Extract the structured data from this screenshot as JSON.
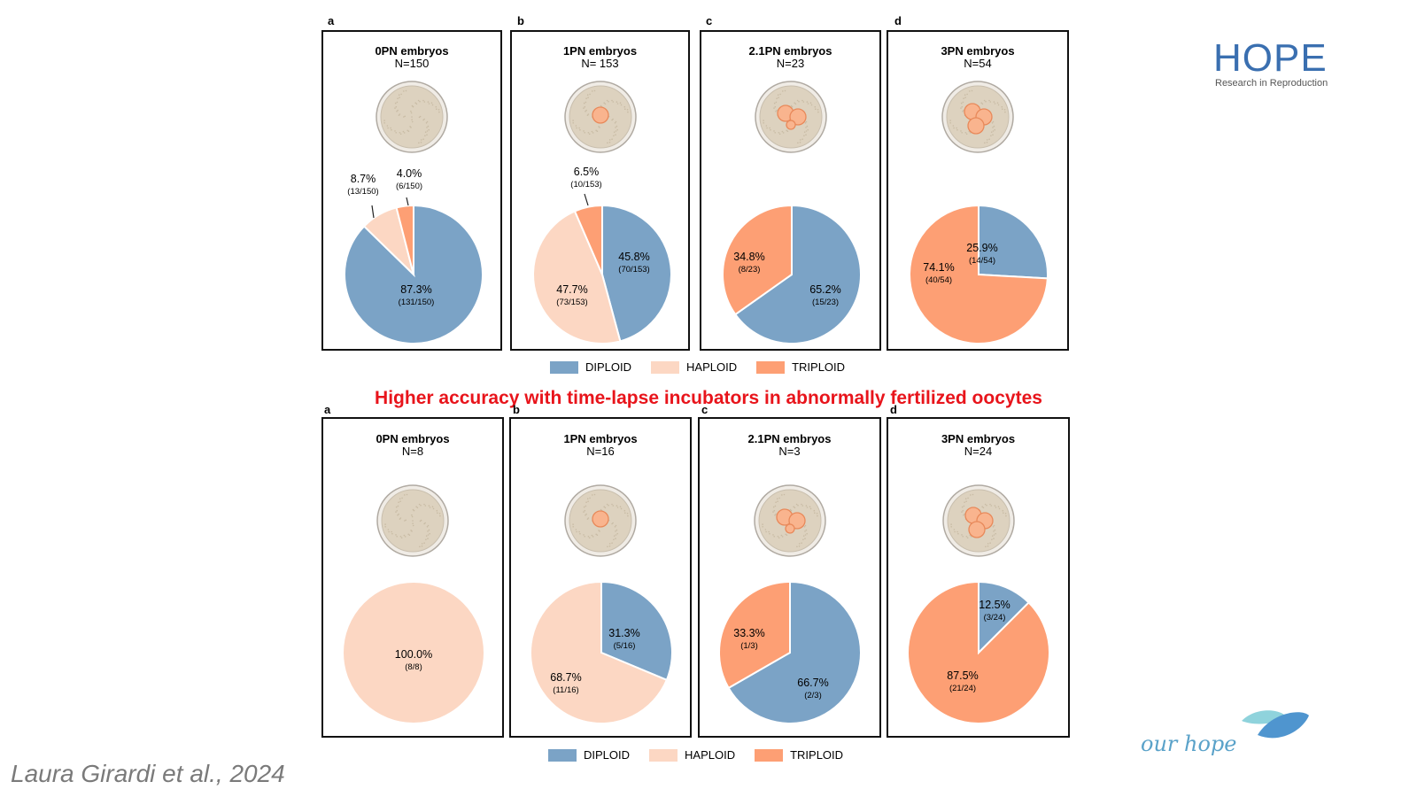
{
  "headline": "Higher accuracy with time-lapse incubators in abnormally fertilized oocytes",
  "citation": "Laura Girardi et al., 2024",
  "logo": {
    "word": "HOPE",
    "subtitle": "Research in Reproduction"
  },
  "tagline": "our hope",
  "colors": {
    "diploid": "#7ba3c6",
    "haploid": "#fcd7c3",
    "triploid": "#fd9f74",
    "headline": "#e8141b"
  },
  "legend": [
    {
      "key": "diploid",
      "label": "DIPLOID"
    },
    {
      "key": "haploid",
      "label": "HAPLOID"
    },
    {
      "key": "triploid",
      "label": "TRIPLOID"
    }
  ],
  "chart_data": [
    {
      "type": "pie",
      "letter": "a",
      "title": "0PN embryos",
      "n_label": "N=150",
      "icon": "dish-0-pronuclei",
      "slices": [
        {
          "series": "DIPLOID",
          "value": 87.3,
          "label": "87.3%",
          "count": "(131/150)"
        },
        {
          "series": "HAPLOID",
          "value": 8.7,
          "label": "8.7%",
          "count": "(13/150)"
        },
        {
          "series": "TRIPLOID",
          "value": 4.0,
          "label": "4.0%",
          "count": "(6/150)"
        }
      ]
    },
    {
      "type": "pie",
      "letter": "b",
      "title": "1PN embryos",
      "n_label": "N= 153",
      "icon": "dish-1-pronucleus",
      "slices": [
        {
          "series": "DIPLOID",
          "value": 45.8,
          "label": "45.8%",
          "count": "(70/153)"
        },
        {
          "series": "HAPLOID",
          "value": 47.7,
          "label": "47.7%",
          "count": "(73/153)"
        },
        {
          "series": "TRIPLOID",
          "value": 6.5,
          "label": "6.5%",
          "count": "(10/153)"
        }
      ]
    },
    {
      "type": "pie",
      "letter": "c",
      "title": "2.1PN embryos",
      "n_label": "N=23",
      "icon": "dish-2-1-pronuclei",
      "slices": [
        {
          "series": "DIPLOID",
          "value": 65.2,
          "label": "65.2%",
          "count": "(15/23)"
        },
        {
          "series": "TRIPLOID",
          "value": 34.8,
          "label": "34.8%",
          "count": "(8/23)"
        }
      ]
    },
    {
      "type": "pie",
      "letter": "d",
      "title": "3PN embryos",
      "n_label": "N=54",
      "icon": "dish-3-pronuclei",
      "slices": [
        {
          "series": "DIPLOID",
          "value": 25.9,
          "label": "25.9%",
          "count": "(14/54)"
        },
        {
          "series": "TRIPLOID",
          "value": 74.1,
          "label": "74.1%",
          "count": "(40/54)"
        }
      ]
    },
    {
      "type": "pie",
      "letter": "a",
      "title": "0PN embryos",
      "n_label": "N=8",
      "icon": "dish-0-pronuclei",
      "slices": [
        {
          "series": "HAPLOID",
          "value": 100.0,
          "label": "100.0%",
          "count": "(8/8)"
        }
      ]
    },
    {
      "type": "pie",
      "letter": "b",
      "title": "1PN embryos",
      "n_label": "N=16",
      "icon": "dish-1-pronucleus",
      "slices": [
        {
          "series": "DIPLOID",
          "value": 31.3,
          "label": "31.3%",
          "count": "(5/16)"
        },
        {
          "series": "HAPLOID",
          "value": 68.7,
          "label": "68.7%",
          "count": "(11/16)"
        }
      ]
    },
    {
      "type": "pie",
      "letter": "c",
      "title": "2.1PN embryos",
      "n_label": "N=3",
      "icon": "dish-2-1-pronuclei",
      "slices": [
        {
          "series": "DIPLOID",
          "value": 66.7,
          "label": "66.7%",
          "count": "(2/3)"
        },
        {
          "series": "TRIPLOID",
          "value": 33.3,
          "label": "33.3%",
          "count": "(1/3)"
        }
      ]
    },
    {
      "type": "pie",
      "letter": "d",
      "title": "3PN embryos",
      "n_label": "N=24",
      "icon": "dish-3-pronuclei",
      "slices": [
        {
          "series": "DIPLOID",
          "value": 12.5,
          "label": "12.5%",
          "count": "(3/24)"
        },
        {
          "series": "TRIPLOID",
          "value": 87.5,
          "label": "87.5%",
          "count": "(21/24)"
        }
      ]
    }
  ]
}
